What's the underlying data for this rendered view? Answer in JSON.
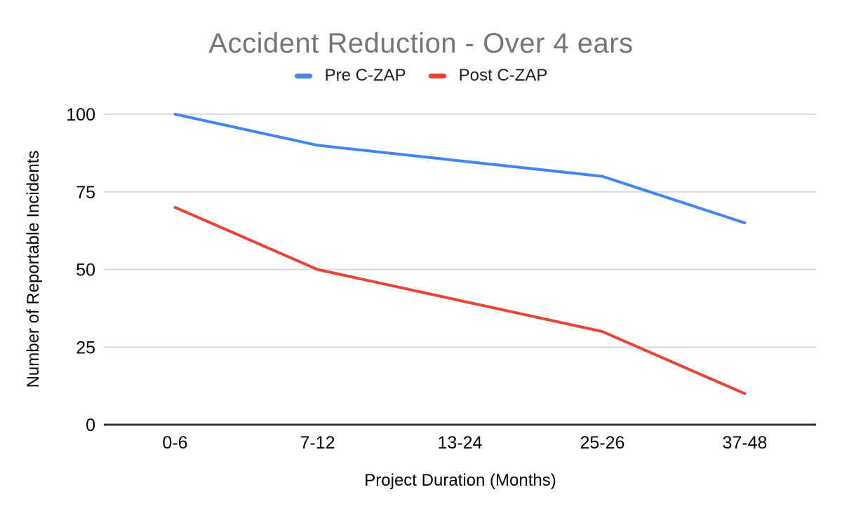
{
  "page": {
    "background_color": "#ffffff"
  },
  "chart_data": {
    "type": "line",
    "title": "Accident Reduction - Over 4 ears",
    "xlabel": "Project Duration (Months)",
    "ylabel": "Number of Reportable Incidents",
    "categories": [
      "0-6",
      "7-12",
      "13-24",
      "25-26",
      "37-48"
    ],
    "series": [
      {
        "name": "Pre C-ZAP",
        "color": "#4285F4",
        "values": [
          100,
          90,
          85,
          80,
          65
        ]
      },
      {
        "name": "Post C-ZAP",
        "color": "#EA4335",
        "values": [
          70,
          50,
          40,
          30,
          10
        ]
      }
    ],
    "ylim": [
      0,
      100
    ],
    "yticks": [
      0,
      25,
      50,
      75,
      100
    ],
    "grid": true,
    "legend_position": "top",
    "colors": {
      "title": "#757575",
      "tick_labels": "#000000",
      "axis_titles": "#000000",
      "legend_text": "#212121",
      "gridline": "#d9d9d9",
      "axis_line": "#333333",
      "background": "#ffffff"
    }
  }
}
